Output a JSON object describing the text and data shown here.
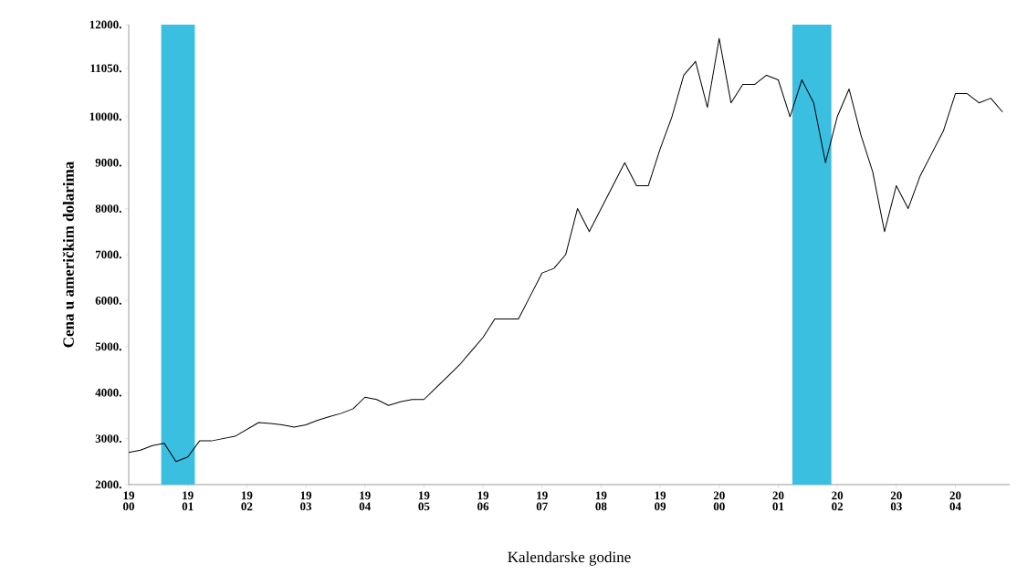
{
  "chart_data": {
    "type": "line",
    "xlabel": "Kalendarske godine",
    "ylabel": "Cena u američkim dolarima",
    "categories": [
      "19 00",
      null,
      null,
      null,
      null,
      "19 01",
      null,
      null,
      null,
      null,
      "19 02",
      null,
      null,
      null,
      null,
      "19 03",
      null,
      null,
      null,
      null,
      "19 04",
      null,
      null,
      null,
      null,
      "19 05",
      null,
      null,
      null,
      null,
      "19 06",
      null,
      null,
      null,
      null,
      "19 07",
      null,
      null,
      null,
      null,
      "19 08",
      null,
      null,
      null,
      null,
      "19 09",
      null,
      null,
      null,
      null,
      "20 00",
      null,
      null,
      null,
      null,
      "20 01",
      null,
      null,
      null,
      null,
      "20 02",
      null,
      null,
      null,
      null,
      "20 03",
      null,
      null,
      null,
      null,
      "20 04",
      null,
      null,
      null,
      null
    ],
    "series": [
      {
        "color": "#000000",
        "values": [
          2700,
          2750,
          2850,
          2900,
          2500,
          2600,
          2950,
          2950,
          3000,
          3050,
          3200,
          3350,
          3330,
          3300,
          3250,
          3300,
          3400,
          3480,
          3550,
          3650,
          3900,
          3850,
          3720,
          3800,
          3850,
          3850,
          4100,
          4350,
          4600,
          4900,
          5200,
          5600,
          5600,
          5600,
          6100,
          6600,
          6700,
          7000,
          8000,
          7500,
          8000,
          8500,
          9000,
          8500,
          8500,
          9300,
          10000,
          10900,
          11200,
          10200,
          11700,
          10300,
          10700,
          10700,
          10900,
          10800,
          10000,
          10800,
          10300,
          9000,
          10000,
          10600,
          9600,
          8800,
          7500,
          8500,
          8000,
          8700,
          9200,
          9700,
          10500,
          10500,
          10300,
          10400,
          10100
        ]
      }
    ],
    "ylim": [
      2000,
      12000
    ],
    "yticks": [
      {
        "value": 2000,
        "label": "2000."
      },
      {
        "value": 3000,
        "label": "3000."
      },
      {
        "value": 4000,
        "label": "4000."
      },
      {
        "value": 5000,
        "label": "5000."
      },
      {
        "value": 6000,
        "label": "6000."
      },
      {
        "value": 7000,
        "label": "7000."
      },
      {
        "value": 8000,
        "label": "8000."
      },
      {
        "value": 9000,
        "label": "9000."
      },
      {
        "value": 10000,
        "label": "10000."
      },
      {
        "value": 11050,
        "label": "11050."
      },
      {
        "value": 12000,
        "label": "12000."
      }
    ],
    "marker": "none",
    "line_style": "solid"
  }
}
